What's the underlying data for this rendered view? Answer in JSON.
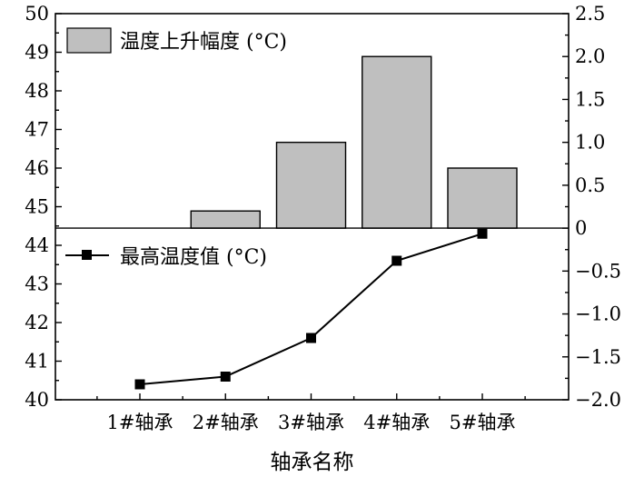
{
  "chart_data": {
    "type": "bar",
    "categories": [
      "1#轴承",
      "2#轴承",
      "3#轴承",
      "4#轴承",
      "5#轴承"
    ],
    "xlabel": "轴承名称",
    "series": [
      {
        "name": "温度上升幅度 (°C)",
        "type": "bar",
        "axis": "right",
        "values": [
          0.0,
          0.2,
          1.0,
          2.0,
          0.7
        ],
        "color": "#bfbfbf"
      },
      {
        "name": "最高温度值 (°C)",
        "type": "line",
        "axis": "left",
        "marker": "square",
        "values": [
          40.4,
          40.6,
          41.6,
          43.6,
          44.3
        ],
        "color": "#000000"
      }
    ],
    "left_axis": {
      "ylim": [
        40,
        50
      ],
      "ticks": [
        "40",
        "41",
        "42",
        "43",
        "44",
        "45",
        "46",
        "47",
        "48",
        "49",
        "50"
      ]
    },
    "right_axis": {
      "ylim": [
        -2.0,
        2.5
      ],
      "ticks": [
        "−2.0",
        "−1.5",
        "−1.0",
        "−0.5",
        "0",
        "0.5",
        "1.0",
        "1.5",
        "2.0",
        "2.5"
      ]
    },
    "grid": false,
    "legend": [
      {
        "label": "温度上升幅度 (°C)",
        "position": "top-left"
      },
      {
        "label": "最高温度值 (°C)",
        "position": "center-left"
      }
    ]
  }
}
